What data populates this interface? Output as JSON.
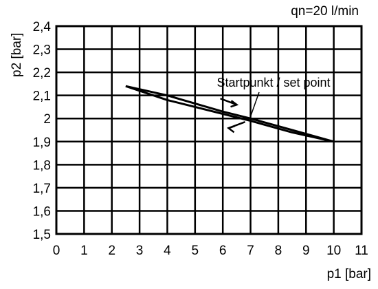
{
  "chart_data": {
    "type": "line",
    "annotation_top": "qn=20 l/min",
    "xlabel": "p1 [bar]",
    "ylabel": "p2 [bar]",
    "xlim": [
      0,
      11
    ],
    "ylim": [
      1.5,
      2.4
    ],
    "x_ticks": [
      "0",
      "1",
      "2",
      "3",
      "4",
      "5",
      "6",
      "7",
      "8",
      "9",
      "10",
      "11"
    ],
    "y_ticks": [
      "1,5",
      "1,6",
      "1,7",
      "1,8",
      "1,9",
      "2",
      "2,1",
      "2,2",
      "2,3",
      "2,4"
    ],
    "grid": true,
    "set_point_label": "Startpunkt / set point",
    "set_point": {
      "x": 7,
      "y": 2.0
    },
    "series": [
      {
        "values": [
          {
            "x": 2.5,
            "y": 2.14
          },
          {
            "x": 4.0,
            "y": 2.1
          },
          {
            "x": 6.0,
            "y": 2.03
          },
          {
            "x": 7.0,
            "y": 2.0
          },
          {
            "x": 8.5,
            "y": 1.95
          },
          {
            "x": 10.0,
            "y": 1.9
          }
        ]
      },
      {
        "values": [
          {
            "x": 10.0,
            "y": 1.9
          },
          {
            "x": 8.5,
            "y": 1.94
          },
          {
            "x": 7.0,
            "y": 1.99
          },
          {
            "x": 6.0,
            "y": 2.02
          },
          {
            "x": 4.0,
            "y": 2.08
          },
          {
            "x": 2.5,
            "y": 2.14
          }
        ]
      }
    ]
  }
}
